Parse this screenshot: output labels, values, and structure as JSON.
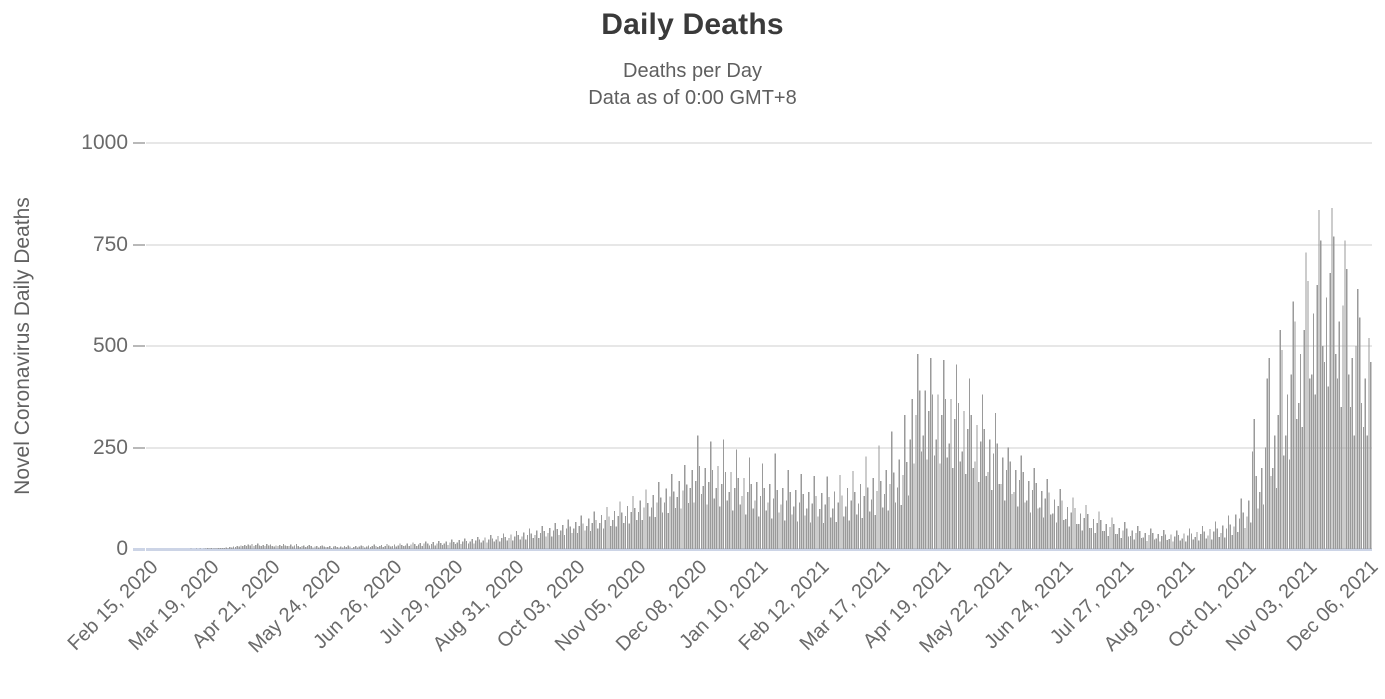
{
  "header": {
    "title": "Daily Deaths",
    "subtitle": "Deaths per Day",
    "note": "Data as of 0:00 GMT+8"
  },
  "y_axis": {
    "title": "Novel Coronavirus Daily Deaths",
    "tick_labels": [
      "0",
      "250",
      "500",
      "750",
      "1000"
    ]
  },
  "colors": {
    "bar": "#9a9a9a",
    "gridline": "#e7e7e7",
    "baseline": "#ccd4e6",
    "title_text": "#3a3a3a",
    "subtitle_text": "#5f5f5f",
    "axis_text": "#6a6a6a"
  },
  "chart_data": {
    "type": "bar",
    "title": "Daily Deaths",
    "subtitle": "Deaths per Day",
    "note": "Data as of 0:00 GMT+8",
    "ylabel": "Novel Coronavirus Daily Deaths",
    "xlabel": "",
    "ylim": [
      0,
      1000
    ],
    "y_ticks": [
      0,
      250,
      500,
      750,
      1000
    ],
    "grid": "horizontal",
    "legend": "none",
    "start_date": "Feb 15, 2020",
    "end_date": "Dec 08, 2021",
    "frequency": "daily",
    "x_tick_labels": [
      "Feb 15, 2020",
      "Mar 19, 2020",
      "Apr 21, 2020",
      "May 24, 2020",
      "Jun 26, 2020",
      "Jul 29, 2020",
      "Aug 31, 2020",
      "Oct 03, 2020",
      "Nov 05, 2020",
      "Dec 08, 2020",
      "Jan 10, 2021",
      "Feb 12, 2021",
      "Mar 17, 2021",
      "Apr 19, 2021",
      "May 22, 2021",
      "Jun 24, 2021",
      "Jul 27, 2021",
      "Aug 29, 2021",
      "Oct 01, 2021",
      "Nov 03, 2021",
      "Dec 06, 2021"
    ],
    "x_tick_day_indices": [
      0,
      33,
      66,
      99,
      132,
      165,
      198,
      231,
      264,
      297,
      330,
      363,
      396,
      429,
      462,
      495,
      528,
      561,
      594,
      627,
      660
    ],
    "values": [
      0,
      0,
      0,
      0,
      0,
      0,
      0,
      0,
      0,
      0,
      0,
      0,
      0,
      0,
      0,
      0,
      0,
      0,
      0,
      0,
      0,
      0,
      0,
      0,
      1,
      0,
      0,
      1,
      0,
      1,
      0,
      1,
      1,
      2,
      1,
      2,
      1,
      2,
      2,
      3,
      3,
      2,
      3,
      4,
      3,
      5,
      4,
      6,
      5,
      8,
      6,
      9,
      7,
      10,
      8,
      11,
      9,
      12,
      8,
      10,
      13,
      9,
      7,
      10,
      8,
      12,
      9,
      11,
      8,
      6,
      9,
      7,
      10,
      8,
      12,
      9,
      7,
      8,
      11,
      6,
      9,
      12,
      8,
      5,
      7,
      9,
      5,
      8,
      10,
      7,
      4,
      6,
      8,
      4,
      7,
      9,
      6,
      5,
      5,
      7,
      3,
      6,
      8,
      5,
      4,
      6,
      4,
      7,
      5,
      9,
      6,
      3,
      5,
      8,
      4,
      6,
      9,
      7,
      4,
      6,
      9,
      5,
      7,
      11,
      8,
      5,
      7,
      10,
      5,
      8,
      12,
      9,
      6,
      8,
      11,
      6,
      9,
      13,
      10,
      7,
      9,
      13,
      7,
      11,
      16,
      12,
      8,
      11,
      15,
      8,
      13,
      18,
      14,
      9,
      12,
      17,
      9,
      14,
      20,
      15,
      10,
      14,
      19,
      10,
      16,
      23,
      17,
      12,
      16,
      22,
      12,
      18,
      26,
      20,
      14,
      18,
      25,
      14,
      21,
      30,
      23,
      16,
      21,
      28,
      16,
      24,
      34,
      26,
      18,
      24,
      32,
      18,
      27,
      38,
      29,
      21,
      27,
      36,
      21,
      31,
      44,
      34,
      24,
      31,
      41,
      24,
      35,
      50,
      38,
      27,
      35,
      46,
      27,
      40,
      57,
      44,
      31,
      40,
      52,
      31,
      45,
      64,
      49,
      35,
      45,
      59,
      35,
      51,
      73,
      56,
      40,
      51,
      66,
      39,
      57,
      82,
      63,
      45,
      57,
      75,
      44,
      64,
      92,
      71,
      50,
      64,
      84,
      50,
      72,
      104,
      80,
      57,
      72,
      94,
      56,
      81,
      117,
      90,
      64,
      81,
      106,
      63,
      91,
      131,
      101,
      72,
      91,
      119,
      71,
      102,
      147,
      113,
      80,
      102,
      133,
      79,
      115,
      165,
      127,
      90,
      114,
      149,
      89,
      129,
      185,
      142,
      101,
      128,
      167,
      100,
      144,
      207,
      159,
      113,
      150,
      195,
      115,
      168,
      280,
      205,
      135,
      155,
      200,
      110,
      165,
      265,
      195,
      125,
      150,
      205,
      105,
      160,
      270,
      190,
      120,
      140,
      190,
      95,
      150,
      245,
      175,
      110,
      130,
      175,
      85,
      140,
      225,
      160,
      100,
      120,
      165,
      80,
      130,
      210,
      150,
      95,
      115,
      160,
      75,
      125,
      235,
      145,
      90,
      110,
      150,
      70,
      120,
      195,
      140,
      85,
      105,
      145,
      68,
      115,
      185,
      135,
      82,
      100,
      140,
      65,
      112,
      180,
      130,
      80,
      98,
      138,
      64,
      110,
      178,
      128,
      78,
      100,
      142,
      66,
      114,
      182,
      132,
      80,
      105,
      150,
      70,
      120,
      192,
      140,
      85,
      112,
      160,
      76,
      130,
      228,
      152,
      92,
      122,
      175,
      84,
      143,
      255,
      168,
      102,
      135,
      195,
      95,
      160,
      290,
      188,
      115,
      152,
      220,
      108,
      182,
      330,
      214,
      132,
      270,
      370,
      210,
      330,
      480,
      390,
      240,
      280,
      390,
      220,
      340,
      470,
      380,
      230,
      270,
      380,
      210,
      330,
      465,
      370,
      225,
      260,
      370,
      200,
      320,
      455,
      360,
      215,
      240,
      340,
      185,
      295,
      420,
      330,
      200,
      215,
      305,
      165,
      265,
      380,
      295,
      180,
      190,
      270,
      145,
      235,
      335,
      260,
      160,
      160,
      225,
      120,
      195,
      250,
      215,
      135,
      140,
      195,
      105,
      170,
      230,
      190,
      115,
      120,
      168,
      90,
      145,
      200,
      162,
      100,
      102,
      143,
      77,
      124,
      172,
      139,
      85,
      87,
      122,
      65,
      106,
      148,
      119,
      72,
      74,
      104,
      55,
      90,
      127,
      101,
      61,
      62,
      88,
      46,
      76,
      108,
      86,
      52,
      52,
      74,
      39,
      64,
      92,
      72,
      44,
      44,
      62,
      32,
      54,
      78,
      61,
      37,
      37,
      52,
      27,
      45,
      66,
      51,
      31,
      32,
      45,
      23,
      39,
      57,
      44,
      27,
      28,
      40,
      20,
      34,
      50,
      39,
      24,
      26,
      37,
      19,
      32,
      47,
      36,
      22,
      25,
      36,
      18,
      31,
      46,
      35,
      21,
      26,
      38,
      19,
      33,
      50,
      38,
      23,
      29,
      42,
      21,
      37,
      57,
      43,
      26,
      33,
      49,
      24,
      43,
      68,
      50,
      30,
      39,
      58,
      28,
      51,
      83,
      60,
      35,
      55,
      85,
      42,
      75,
      125,
      90,
      52,
      80,
      120,
      65,
      240,
      320,
      180,
      100,
      140,
      200,
      110,
      250,
      420,
      470,
      180,
      200,
      280,
      150,
      330,
      540,
      490,
      230,
      280,
      380,
      220,
      430,
      610,
      560,
      320,
      360,
      480,
      300,
      540,
      730,
      660,
      420,
      430,
      580,
      380,
      650,
      835,
      760,
      500,
      460,
      620,
      400,
      680,
      840,
      770,
      480,
      420,
      560,
      350,
      600,
      760,
      690,
      430,
      350,
      470,
      280,
      500,
      640,
      570,
      360,
      300,
      420,
      280,
      520,
      460
    ]
  }
}
